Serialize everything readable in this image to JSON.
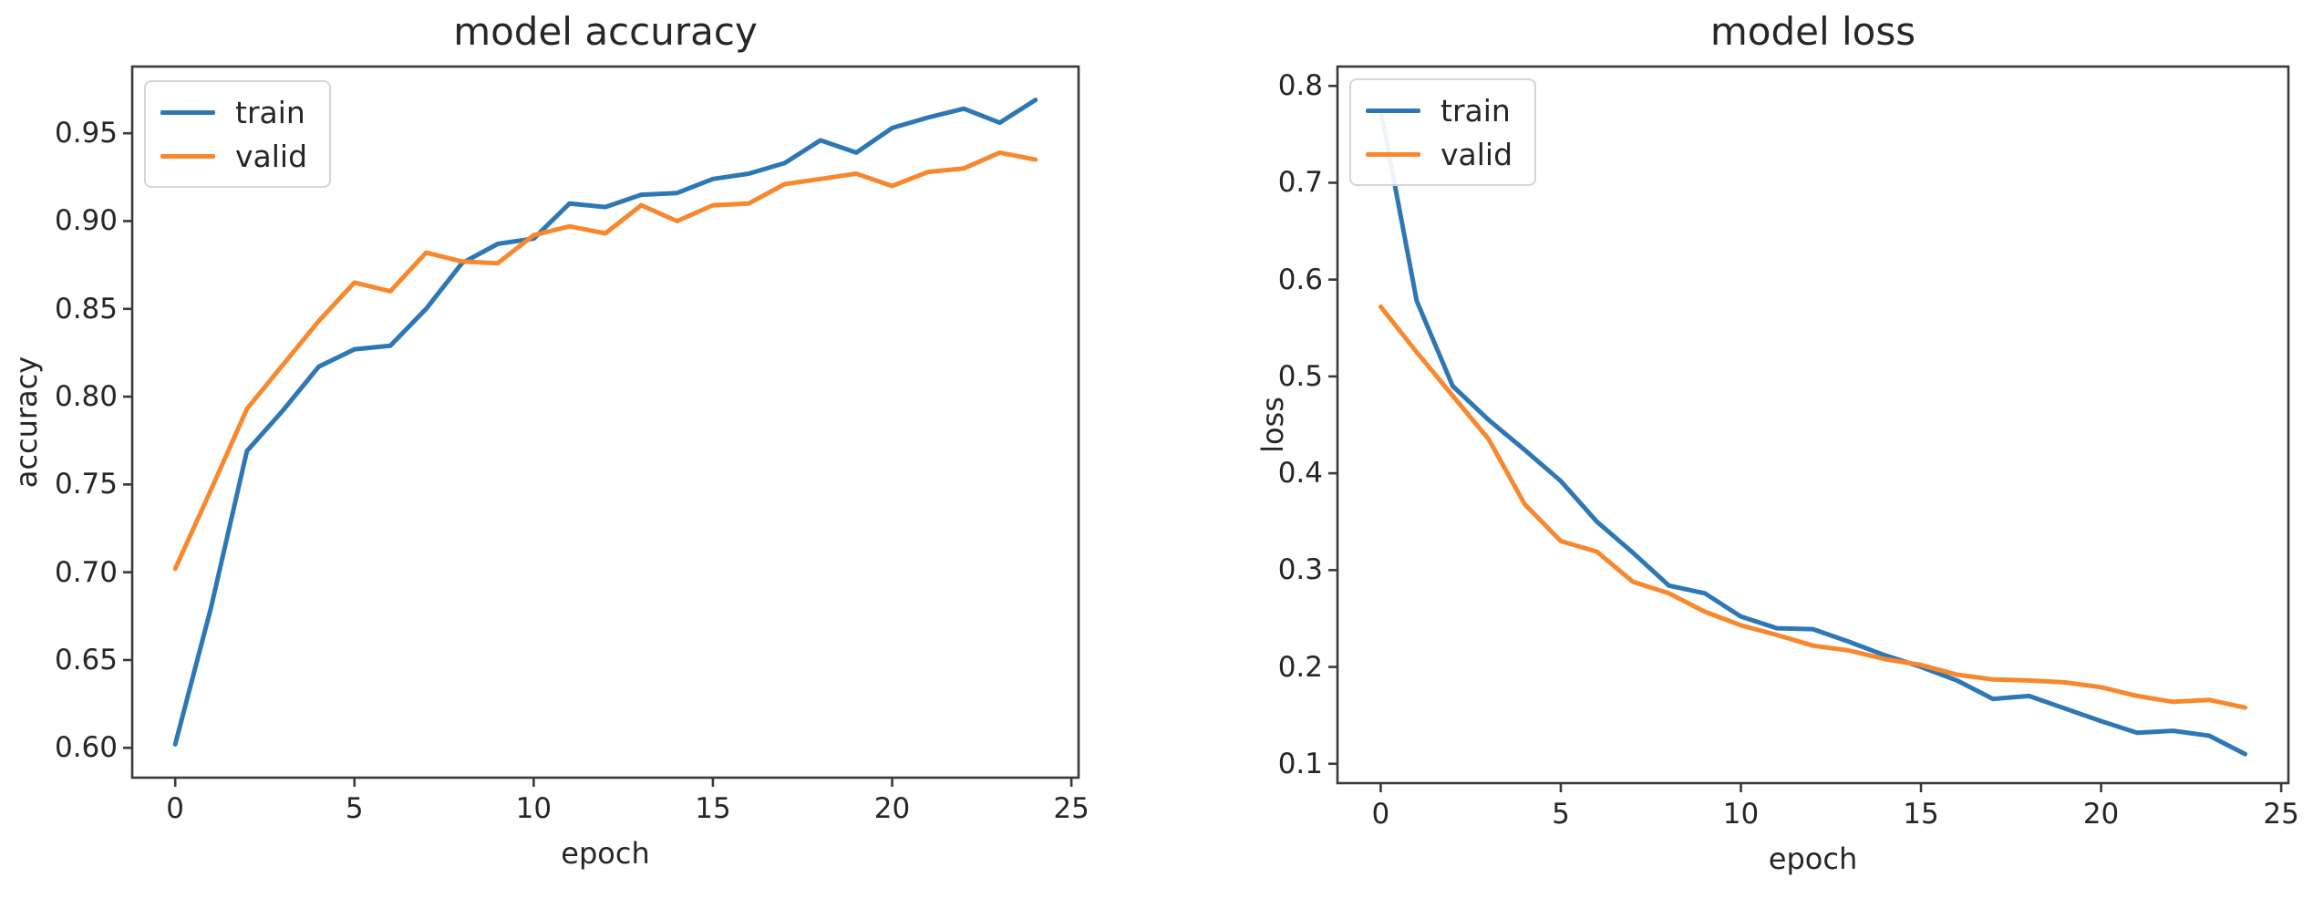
{
  "colors": {
    "train": "#2e77b5",
    "valid": "#f8882e",
    "spine": "#3a3a3a",
    "tick": "#3a3a3a",
    "text": "#262626",
    "legend_border": "#d5d5d5"
  },
  "chart_data": [
    {
      "id": "accuracy",
      "type": "line",
      "title": "model accuracy",
      "xlabel": "epoch",
      "ylabel": "accuracy",
      "legend_position": "upper left",
      "grid": false,
      "xlim": [
        -1.2,
        25.2
      ],
      "ylim": [
        0.583,
        0.988
      ],
      "xticks": {
        "values": [
          0,
          5,
          10,
          15,
          20,
          25
        ],
        "labels": [
          "0",
          "5",
          "10",
          "15",
          "20",
          "25"
        ]
      },
      "yticks": {
        "values": [
          0.6,
          0.65,
          0.7,
          0.75,
          0.8,
          0.85,
          0.9,
          0.95
        ],
        "labels": [
          "0.60",
          "0.65",
          "0.70",
          "0.75",
          "0.80",
          "0.85",
          "0.90",
          "0.95"
        ]
      },
      "x": [
        0,
        1,
        2,
        3,
        4,
        5,
        6,
        7,
        8,
        9,
        10,
        11,
        12,
        13,
        14,
        15,
        16,
        17,
        18,
        19,
        20,
        21,
        22,
        23,
        24
      ],
      "series": [
        {
          "name": "train",
          "values": [
            0.602,
            0.68,
            0.769,
            0.792,
            0.817,
            0.827,
            0.829,
            0.85,
            0.876,
            0.887,
            0.89,
            0.91,
            0.908,
            0.915,
            0.916,
            0.924,
            0.927,
            0.933,
            0.946,
            0.939,
            0.953,
            0.959,
            0.964,
            0.956,
            0.969
          ]
        },
        {
          "name": "valid",
          "values": [
            0.702,
            0.747,
            0.793,
            0.818,
            0.843,
            0.865,
            0.86,
            0.882,
            0.877,
            0.876,
            0.892,
            0.897,
            0.893,
            0.909,
            0.9,
            0.909,
            0.91,
            0.921,
            0.924,
            0.927,
            0.92,
            0.928,
            0.93,
            0.939,
            0.935
          ]
        }
      ]
    },
    {
      "id": "loss",
      "type": "line",
      "title": "model loss",
      "xlabel": "epoch",
      "ylabel": "loss",
      "legend_position": "upper left",
      "grid": false,
      "xlim": [
        -1.2,
        25.2
      ],
      "ylim": [
        0.08,
        0.82
      ],
      "xticks": {
        "values": [
          0,
          5,
          10,
          15,
          20,
          25
        ],
        "labels": [
          "0",
          "5",
          "10",
          "15",
          "20",
          "25"
        ]
      },
      "yticks": {
        "values": [
          0.1,
          0.2,
          0.3,
          0.4,
          0.5,
          0.6,
          0.7,
          0.8
        ],
        "labels": [
          "0.1",
          "0.2",
          "0.3",
          "0.4",
          "0.5",
          "0.6",
          "0.7",
          "0.8"
        ]
      },
      "x": [
        0,
        1,
        2,
        3,
        4,
        5,
        6,
        7,
        8,
        9,
        10,
        11,
        12,
        13,
        14,
        15,
        16,
        17,
        18,
        19,
        20,
        21,
        22,
        23,
        24
      ],
      "series": [
        {
          "name": "train",
          "values": [
            0.775,
            0.578,
            0.49,
            0.455,
            0.424,
            0.392,
            0.35,
            0.318,
            0.284,
            0.276,
            0.252,
            0.24,
            0.239,
            0.226,
            0.212,
            0.2,
            0.186,
            0.167,
            0.17,
            0.157,
            0.144,
            0.132,
            0.134,
            0.129,
            0.11
          ]
        },
        {
          "name": "valid",
          "values": [
            0.572,
            0.525,
            0.48,
            0.435,
            0.368,
            0.33,
            0.319,
            0.288,
            0.276,
            0.257,
            0.243,
            0.233,
            0.222,
            0.217,
            0.208,
            0.202,
            0.192,
            0.187,
            0.186,
            0.184,
            0.179,
            0.17,
            0.164,
            0.166,
            0.158
          ]
        }
      ]
    }
  ]
}
